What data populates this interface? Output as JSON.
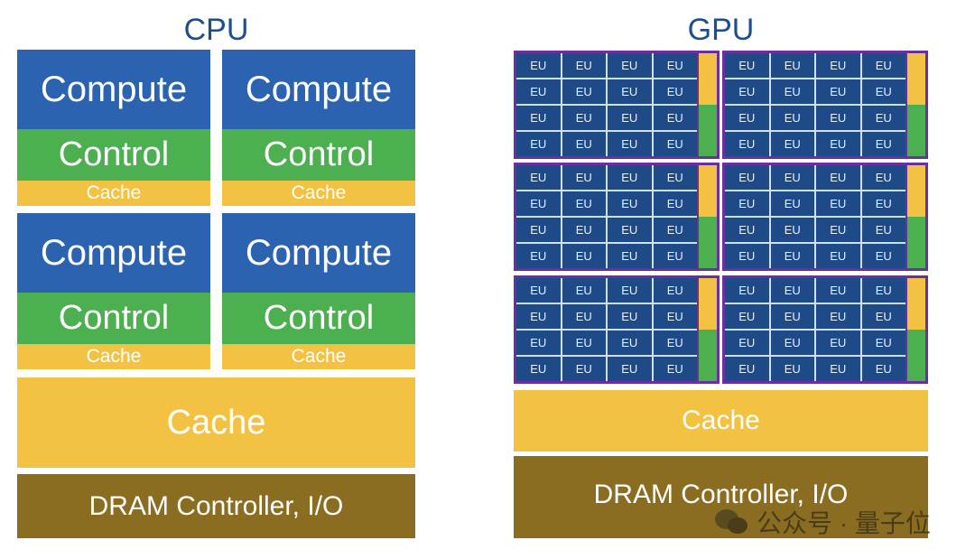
{
  "cpu": {
    "title": "CPU",
    "compute": "Compute",
    "control": "Control",
    "core_cache": "Cache",
    "cache": "Cache",
    "dram": "DRAM Controller, I/O"
  },
  "gpu": {
    "title": "GPU",
    "eu_label": "EU",
    "cache": "Cache",
    "dram": "DRAM Controller, I/O"
  },
  "watermark": {
    "text": "公众号 · 量子位",
    "icon": "wechat-icon"
  },
  "colors": {
    "compute": "#2b63b0",
    "control": "#4caf50",
    "cache": "#f4c242",
    "dram": "#8b6d22",
    "eu": "#1e4a87",
    "sm_border": "#6a2fa0"
  }
}
